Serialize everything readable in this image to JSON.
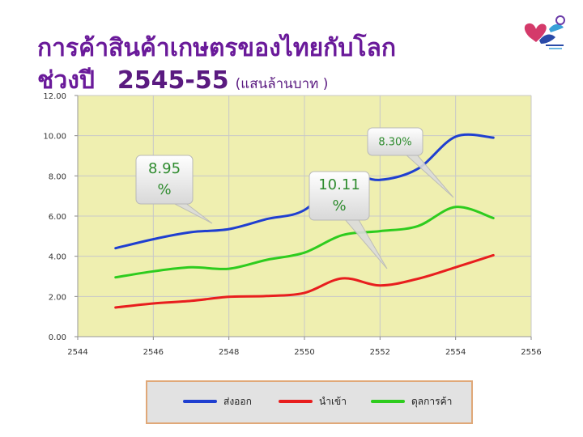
{
  "title": {
    "line1": "การค้าสินค้าเกษตรของไทยกับโลก",
    "line2_prefix": "ช่วงปี",
    "line2_range": "2545-55",
    "line2_unit": "(แสนล้านบาท )"
  },
  "chart_data": {
    "type": "line",
    "xlim": [
      2544,
      2556
    ],
    "ylim": [
      0,
      12
    ],
    "x_ticks": [
      "2544",
      "2546",
      "2548",
      "2550",
      "2552",
      "2554",
      "2556"
    ],
    "y_ticks": [
      "0.00",
      "2.00",
      "4.00",
      "6.00",
      "8.00",
      "10.00",
      "12.00"
    ],
    "grid": true,
    "series": [
      {
        "name": "ส่งออก",
        "color": "#1f3fd0",
        "x": [
          2545,
          2546,
          2547,
          2548,
          2549,
          2550,
          2551,
          2552,
          2553,
          2554,
          2555
        ],
        "y": [
          4.4,
          4.85,
          5.2,
          5.35,
          5.85,
          6.3,
          8.0,
          7.8,
          8.35,
          9.95,
          9.9
        ]
      },
      {
        "name": "นำเข้า",
        "color": "#e81e1e",
        "x": [
          2545,
          2546,
          2547,
          2548,
          2549,
          2550,
          2551,
          2552,
          2553,
          2554,
          2555
        ],
        "y": [
          1.45,
          1.65,
          1.78,
          1.98,
          2.02,
          2.18,
          2.9,
          2.55,
          2.88,
          3.45,
          4.05
        ]
      },
      {
        "name": "ดุลการค้า",
        "color": "#2ecc1e",
        "x": [
          2545,
          2546,
          2547,
          2548,
          2549,
          2550,
          2551,
          2552,
          2553,
          2554,
          2555
        ],
        "y": [
          2.95,
          3.25,
          3.45,
          3.38,
          3.82,
          4.18,
          5.05,
          5.25,
          5.5,
          6.45,
          5.9
        ]
      }
    ],
    "annotations": [
      {
        "text_line1": "8.95",
        "text_line2": "%"
      },
      {
        "text_line1": "10.11",
        "text_line2": "%"
      },
      {
        "text_line1": "8.30%"
      }
    ],
    "legend_position": "bottom"
  },
  "colors": {
    "plot_background": "#efefb0",
    "annotation_text": "#2e8b2e",
    "legend_background": "#e2e2e2",
    "legend_border": "#e0a878",
    "title": "#6a1a9a"
  }
}
